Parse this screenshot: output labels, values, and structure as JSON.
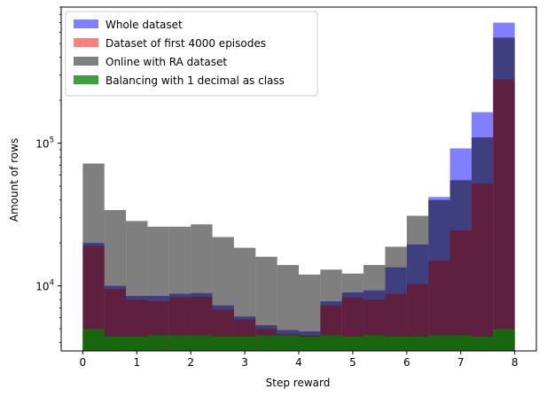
{
  "chart_data": {
    "type": "bar",
    "title": "",
    "xlabel": "Step reward",
    "ylabel": "Amount of rows",
    "yscale": "log",
    "xlim": [
      -0.4,
      8.4
    ],
    "ylim": [
      3500,
      900000
    ],
    "grid": false,
    "legend_position": "top-left",
    "x_ticks": [
      0,
      1,
      2,
      3,
      4,
      5,
      6,
      7,
      8
    ],
    "y_ticks": [
      {
        "value": 10000,
        "base": "10",
        "exp": "4"
      },
      {
        "value": 100000,
        "base": "10",
        "exp": "5"
      }
    ],
    "bin_edges": [
      0,
      0.4,
      0.8,
      1.2,
      1.6,
      2.0,
      2.4,
      2.8,
      3.2,
      3.6,
      4.0,
      4.4,
      4.8,
      5.2,
      5.6,
      6.0,
      6.4,
      6.8,
      7.2,
      7.6,
      8.0
    ],
    "series": [
      {
        "name": "Whole dataset",
        "color": "#0000ff",
        "opacity": 0.5,
        "values": [
          20000,
          10000,
          8500,
          8500,
          8800,
          8900,
          7300,
          6100,
          5300,
          4900,
          4800,
          7800,
          9000,
          9300,
          13500,
          19500,
          42000,
          92000,
          165000,
          700000
        ]
      },
      {
        "name": "Dataset of first 4000 episodes",
        "color": "#ff0000",
        "opacity": 0.5,
        "values": [
          19000,
          9500,
          8000,
          7800,
          8300,
          8400,
          6800,
          5800,
          5000,
          4600,
          4500,
          7300,
          8300,
          8000,
          8800,
          10300,
          15000,
          24500,
          52000,
          280000
        ]
      },
      {
        "name": "Online with RA dataset",
        "color": "#000000",
        "opacity": 0.5,
        "values": [
          72000,
          34000,
          28500,
          26000,
          26000,
          27000,
          22000,
          18500,
          16000,
          14000,
          12000,
          13000,
          12200,
          14000,
          18800,
          31000,
          40000,
          55000,
          110000,
          550000
        ]
      },
      {
        "name": "Balancing with 1 decimal as class",
        "color": "#008000",
        "opacity": 0.75,
        "values": [
          5000,
          4400,
          4400,
          4500,
          4500,
          4500,
          4400,
          4400,
          4500,
          4500,
          4400,
          4500,
          4400,
          4500,
          4400,
          4400,
          4500,
          4500,
          4400,
          5000
        ]
      }
    ]
  }
}
